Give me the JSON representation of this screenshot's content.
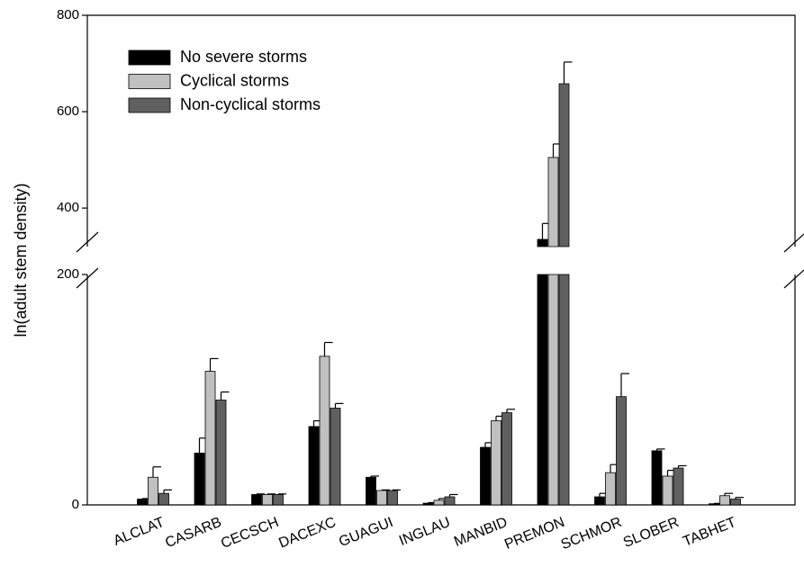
{
  "chart_data": {
    "type": "bar",
    "y_label": "ln(adult stem density)",
    "categories": [
      "ALCLAT",
      "CASARB",
      "CECSCH",
      "DACEXC",
      "GUAGUI",
      "INGLAU",
      "MANBID",
      "PREMON",
      "SCHMOR",
      "SLOBER",
      "TABHET"
    ],
    "series": [
      {
        "name": "No severe storms",
        "color": "#000000",
        "values": [
          5,
          45,
          9,
          68,
          24,
          1.5,
          50,
          335,
          7,
          47,
          1
        ],
        "errors": [
          0.5,
          13,
          0.5,
          5,
          1,
          0.5,
          4,
          33,
          3,
          1.5,
          0.3
        ]
      },
      {
        "name": "Cyclical storms",
        "color": "#c0c0c0",
        "values": [
          24,
          116,
          9,
          129,
          12.5,
          4,
          73,
          505,
          28,
          25,
          8
        ],
        "errors": [
          9,
          11,
          0.5,
          12,
          0.5,
          1.5,
          4,
          28,
          7,
          5,
          2
        ]
      },
      {
        "name": "Non-cyclical storms",
        "color": "#606060",
        "values": [
          10,
          91,
          9,
          84,
          12.5,
          7,
          80,
          658,
          94,
          32,
          5
        ],
        "errors": [
          3,
          7,
          0.5,
          4,
          0.5,
          2,
          3,
          45,
          20,
          2,
          1.5
        ]
      }
    ],
    "ylim": [
      0,
      800
    ],
    "y_break": [
      200,
      320
    ],
    "yticks": [
      0,
      200,
      400,
      600,
      800
    ],
    "legend": "upper left"
  }
}
